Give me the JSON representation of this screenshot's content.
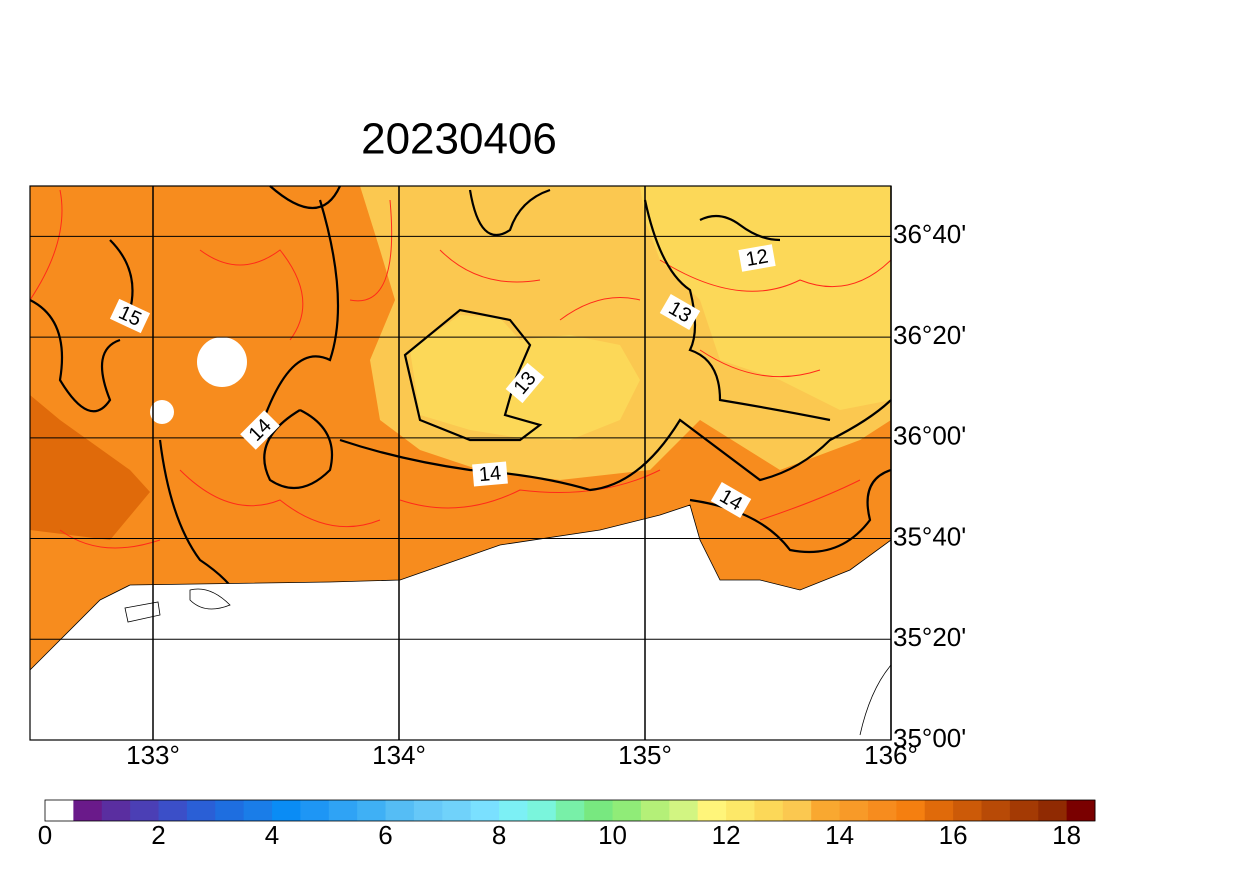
{
  "title": "20230406",
  "map": {
    "xlim": [
      132.5,
      136
    ],
    "ylim": [
      35,
      36.8333
    ],
    "xticks": [
      {
        "value": 133,
        "label": "133°"
      },
      {
        "value": 134,
        "label": "134°"
      },
      {
        "value": 135,
        "label": "135°"
      },
      {
        "value": 136,
        "label": "136°"
      }
    ],
    "yticks": [
      {
        "value": 35,
        "label": "35°00'"
      },
      {
        "value": 35.3333,
        "label": "35°20'"
      },
      {
        "value": 35.6667,
        "label": "35°40'"
      },
      {
        "value": 36,
        "label": "36°00'"
      },
      {
        "value": 36.3333,
        "label": "36°20'"
      },
      {
        "value": 36.6667,
        "label": "36°40'"
      }
    ],
    "contour_labels": [
      15,
      12,
      13,
      13,
      14,
      14,
      14
    ]
  },
  "colorbar": {
    "lim": [
      0,
      18.5
    ],
    "ticks": [
      0,
      2,
      4,
      6,
      8,
      10,
      12,
      14,
      16,
      18
    ],
    "colors": [
      "#ffffff",
      "#6a1a8a",
      "#5a2ea0",
      "#4b3fb5",
      "#3b4fc8",
      "#2a5fd6",
      "#1e6ee0",
      "#1a7de8",
      "#0a8cf5",
      "#1e96f5",
      "#2fa3f5",
      "#3fb0f5",
      "#55bdf5",
      "#66c8f8",
      "#70d2fa",
      "#7ae0ff",
      "#7cf0f5",
      "#7af5dc",
      "#78f0a8",
      "#78e880",
      "#90ec78",
      "#b4f078",
      "#d2f582",
      "#fff57a",
      "#fde868",
      "#fcd858",
      "#fbc850",
      "#f9a830",
      "#f89a28",
      "#f78c1e",
      "#f57f10",
      "#e06a0a",
      "#cc5a08",
      "#b84a06",
      "#a43a04",
      "#902a02",
      "#7a0000"
    ]
  }
}
